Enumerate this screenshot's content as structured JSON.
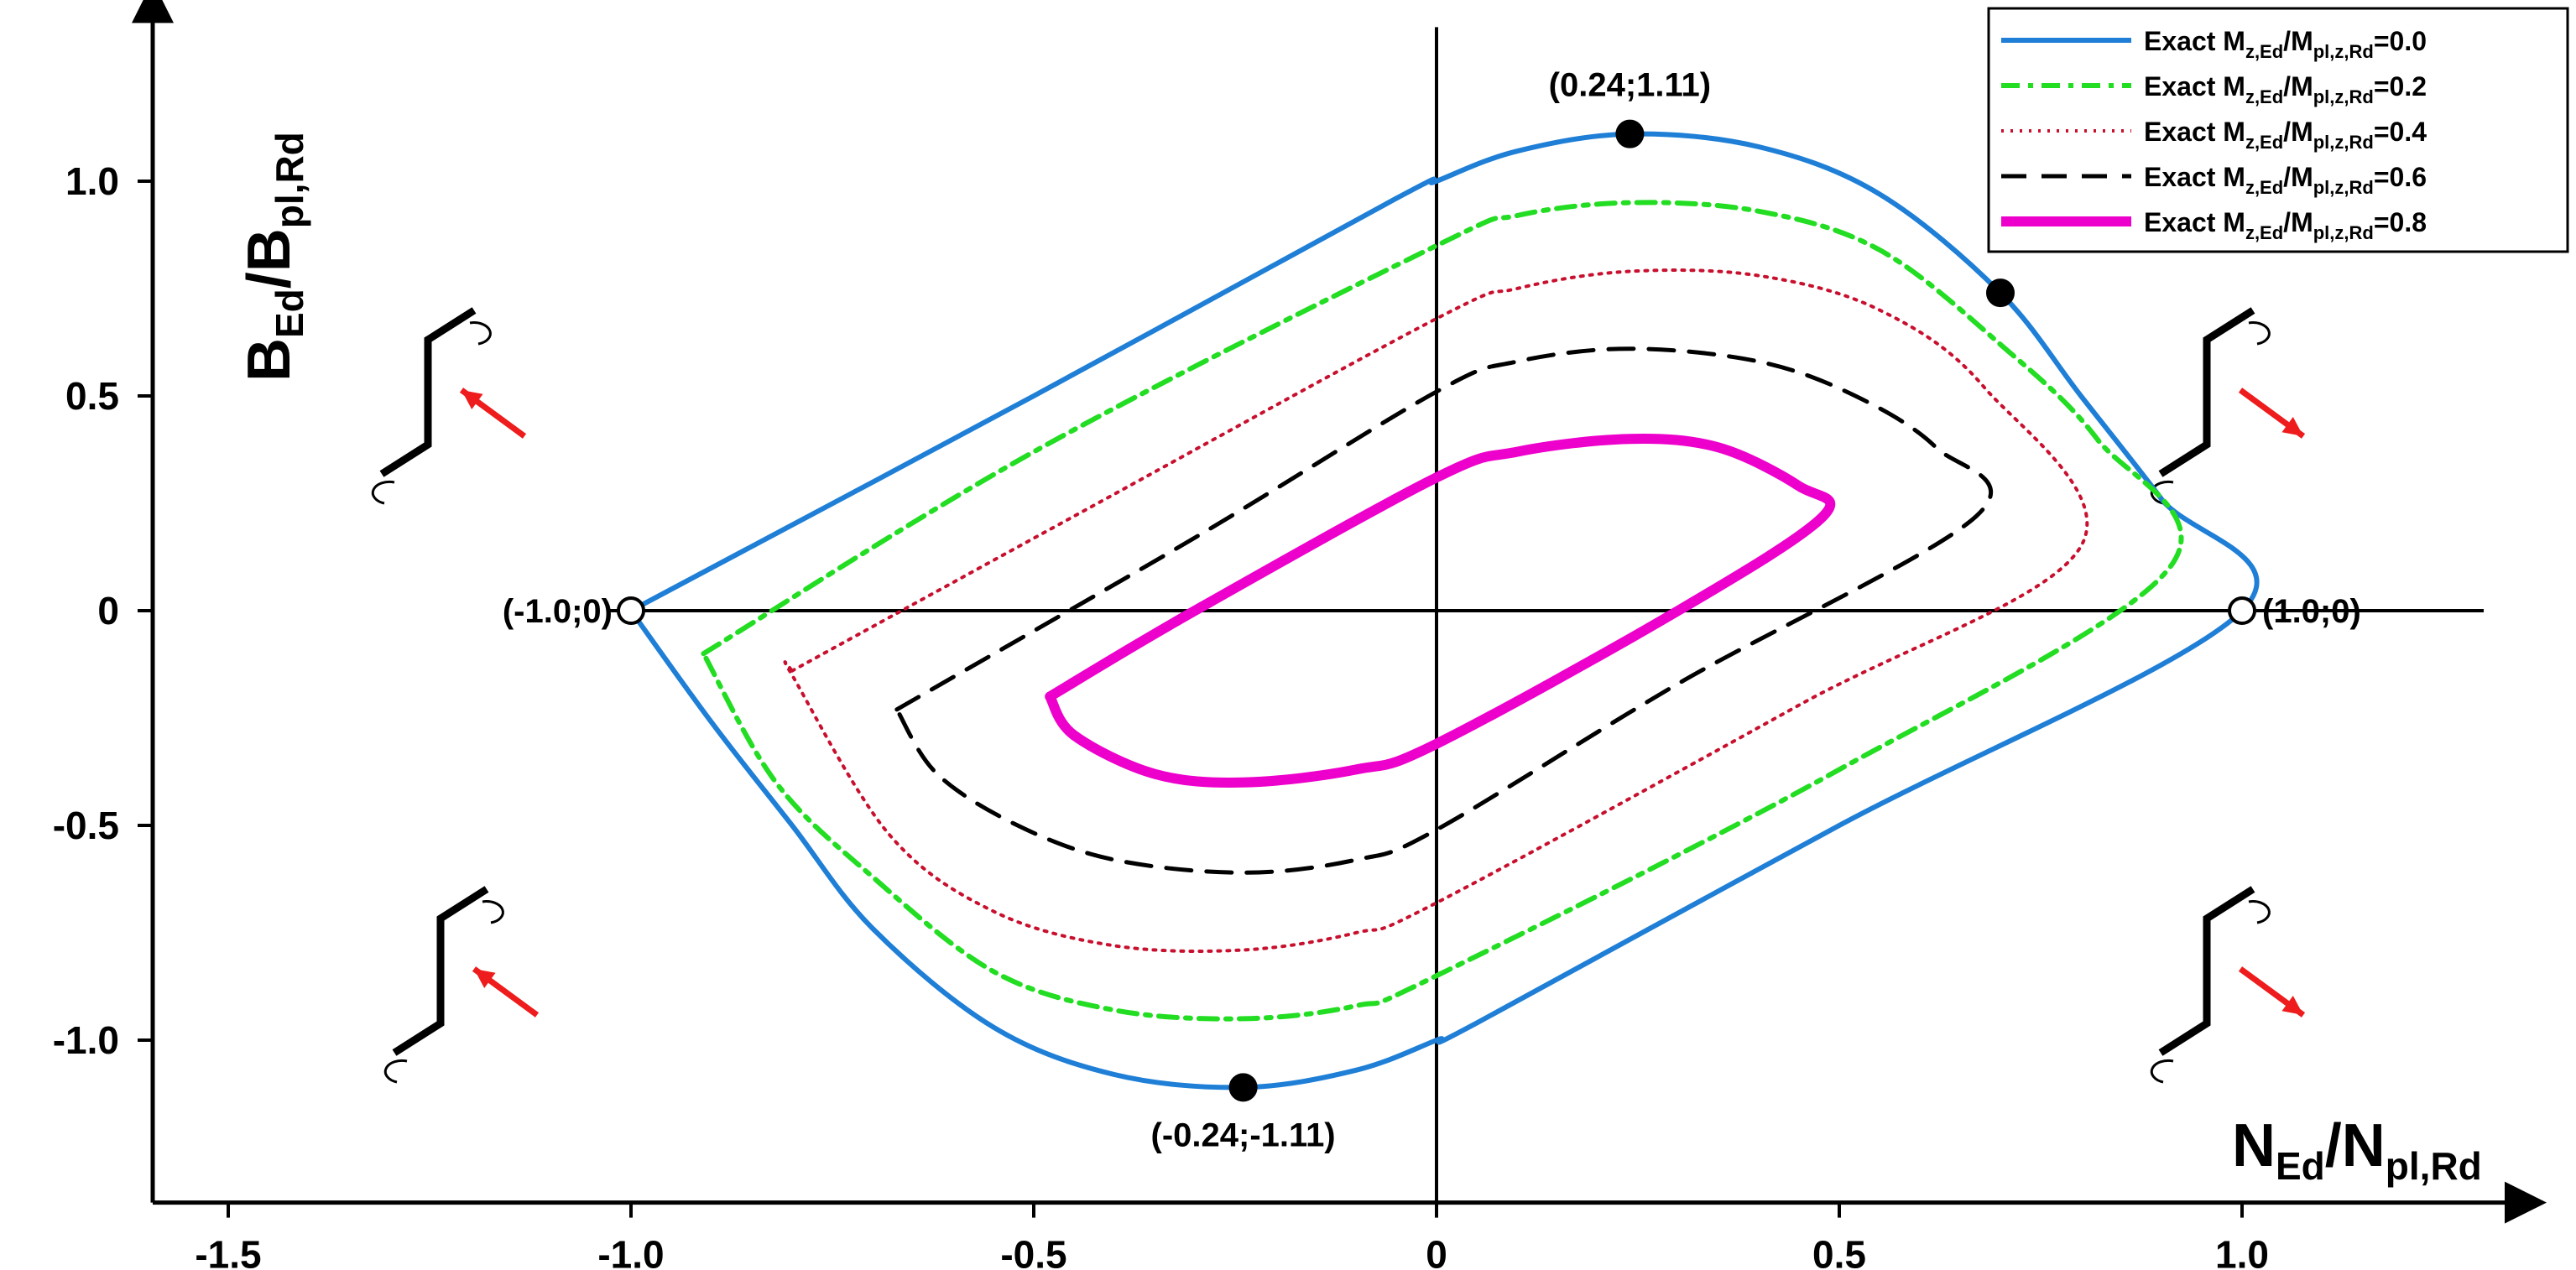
{
  "chart_data": {
    "type": "line",
    "title": "",
    "xlabel": {
      "main": "N",
      "sub1": "Ed",
      "slash": "/N",
      "sub2": "pl,Rd"
    },
    "ylabel": {
      "main": "B",
      "sub1": "Ed",
      "slash": "/B",
      "sub2": "pl,Rd"
    },
    "xlim": [
      -1.6,
      1.3
    ],
    "ylim": [
      -1.3,
      1.3
    ],
    "xticks": [
      {
        "value": -1.5,
        "label": "-1.5"
      },
      {
        "value": -1.0,
        "label": "-1.0"
      },
      {
        "value": -0.5,
        "label": "-0.5"
      },
      {
        "value": 0,
        "label": "0"
      },
      {
        "value": 0.5,
        "label": "0.5"
      },
      {
        "value": 1.0,
        "label": "1.0"
      }
    ],
    "yticks": [
      {
        "value": -1.0,
        "label": "-1.0"
      },
      {
        "value": -0.5,
        "label": "-0.5"
      },
      {
        "value": 0,
        "label": "0"
      },
      {
        "value": 0.5,
        "label": "0.5"
      },
      {
        "value": 1.0,
        "label": "1.0"
      }
    ],
    "grid": false,
    "legend_position": "top-right",
    "series": [
      {
        "legend_main": "Exact M",
        "legend_sub1": "z,Ed",
        "legend_mid": "/M",
        "legend_sub2": "pl,z,Rd",
        "legend_tail": "=0.0",
        "color": "#1f7fd6",
        "width": 6,
        "dash": "",
        "line_style": "solid",
        "points": [
          [
            -1.0,
            0
          ],
          [
            -0.5,
            0.5
          ],
          [
            -0.05,
            0.96
          ],
          [
            0,
            1.0
          ],
          [
            0.1,
            1.07
          ],
          [
            0.24,
            1.11
          ],
          [
            0.4,
            1.08
          ],
          [
            0.55,
            0.97
          ],
          [
            0.7,
            0.74
          ],
          [
            0.8,
            0.5
          ],
          [
            0.9,
            0.26
          ],
          [
            1.0,
            0
          ],
          [
            0.5,
            -0.5
          ],
          [
            0.05,
            -0.96
          ],
          [
            0,
            -1.0
          ],
          [
            -0.1,
            -1.07
          ],
          [
            -0.24,
            -1.11
          ],
          [
            -0.4,
            -1.08
          ],
          [
            -0.55,
            -0.97
          ],
          [
            -0.7,
            -0.74
          ],
          [
            -0.8,
            -0.5
          ],
          [
            -0.9,
            -0.26
          ],
          [
            -1.0,
            0
          ]
        ]
      },
      {
        "legend_main": "Exact M",
        "legend_sub1": "z,Ed",
        "legend_mid": "/M",
        "legend_sub2": "pl,z,Rd",
        "legend_tail": "=0.2",
        "color": "#22dd22",
        "width": 6,
        "dash": "22,10,6,10",
        "line_style": "dash-dot",
        "points": [
          [
            -0.91,
            -0.1
          ],
          [
            -0.5,
            0.37
          ],
          [
            0,
            0.85
          ],
          [
            0.1,
            0.92
          ],
          [
            0.24,
            0.95
          ],
          [
            0.4,
            0.93
          ],
          [
            0.55,
            0.84
          ],
          [
            0.7,
            0.62
          ],
          [
            0.82,
            0.4
          ],
          [
            0.91,
            0.1
          ],
          [
            0.5,
            -0.37
          ],
          [
            0,
            -0.85
          ],
          [
            -0.1,
            -0.92
          ],
          [
            -0.24,
            -0.95
          ],
          [
            -0.4,
            -0.93
          ],
          [
            -0.55,
            -0.84
          ],
          [
            -0.7,
            -0.62
          ],
          [
            -0.82,
            -0.4
          ],
          [
            -0.91,
            -0.1
          ]
        ]
      },
      {
        "legend_main": "Exact M",
        "legend_sub1": "z,Ed",
        "legend_mid": "/M",
        "legend_sub2": "pl,z,Rd",
        "legend_tail": "=0.4",
        "color": "#c8102e",
        "width": 4,
        "dash": "3,8",
        "line_style": "dotted",
        "points": [
          [
            -0.8,
            -0.14
          ],
          [
            -0.45,
            0.22
          ],
          [
            0,
            0.68
          ],
          [
            0.1,
            0.75
          ],
          [
            0.24,
            0.79
          ],
          [
            0.4,
            0.78
          ],
          [
            0.55,
            0.7
          ],
          [
            0.68,
            0.52
          ],
          [
            0.8,
            0.15
          ],
          [
            0.45,
            -0.22
          ],
          [
            0,
            -0.68
          ],
          [
            -0.1,
            -0.75
          ],
          [
            -0.24,
            -0.79
          ],
          [
            -0.4,
            -0.78
          ],
          [
            -0.55,
            -0.7
          ],
          [
            -0.68,
            -0.52
          ],
          [
            -0.8,
            -0.15
          ],
          [
            -0.8,
            -0.14
          ]
        ]
      },
      {
        "legend_main": "Exact M",
        "legend_sub1": "z,Ed",
        "legend_mid": "/M",
        "legend_sub2": "pl,z,Rd",
        "legend_tail": "=0.6",
        "color": "#000000",
        "width": 5,
        "dash": "30,18",
        "line_style": "dashed",
        "points": [
          [
            -0.67,
            -0.23
          ],
          [
            -0.3,
            0.17
          ],
          [
            0,
            0.51
          ],
          [
            0.1,
            0.58
          ],
          [
            0.24,
            0.61
          ],
          [
            0.4,
            0.58
          ],
          [
            0.52,
            0.5
          ],
          [
            0.62,
            0.38
          ],
          [
            0.67,
            0.22
          ],
          [
            0.3,
            -0.17
          ],
          [
            0,
            -0.51
          ],
          [
            -0.1,
            -0.58
          ],
          [
            -0.24,
            -0.61
          ],
          [
            -0.4,
            -0.58
          ],
          [
            -0.52,
            -0.5
          ],
          [
            -0.62,
            -0.38
          ],
          [
            -0.67,
            -0.23
          ]
        ]
      },
      {
        "legend_main": "Exact M",
        "legend_sub1": "z,Ed",
        "legend_mid": "/M",
        "legend_sub2": "pl,z,Rd",
        "legend_tail": "=0.8",
        "color": "#ee00cc",
        "width": 12,
        "dash": "",
        "line_style": "solid",
        "points": [
          [
            -0.48,
            -0.2
          ],
          [
            -0.3,
            0.0
          ],
          [
            0,
            0.31
          ],
          [
            0.1,
            0.37
          ],
          [
            0.24,
            0.4
          ],
          [
            0.35,
            0.38
          ],
          [
            0.45,
            0.29
          ],
          [
            0.48,
            0.22
          ],
          [
            0.3,
            0.0
          ],
          [
            0,
            -0.31
          ],
          [
            -0.1,
            -0.37
          ],
          [
            -0.24,
            -0.4
          ],
          [
            -0.35,
            -0.38
          ],
          [
            -0.45,
            -0.29
          ],
          [
            -0.48,
            -0.2
          ]
        ]
      }
    ],
    "markers": [
      {
        "x": 0.24,
        "y": 1.11,
        "label": "(0.24;1.11)",
        "filled": true
      },
      {
        "x": -0.24,
        "y": -1.11,
        "label": "(-0.24;-1.11)",
        "filled": true
      },
      {
        "x": -1.0,
        "y": 0,
        "label": "(-1.0;0)",
        "filled": false
      },
      {
        "x": 1.0,
        "y": 0,
        "label": "(1.0;0)",
        "filled": false
      },
      {
        "x": 0.7,
        "y": 0.74,
        "label": "",
        "filled": true
      }
    ],
    "quadrant_icons": [
      {
        "name": "quadrant-icon-upper-left",
        "arrow_dir": "up-left"
      },
      {
        "name": "quadrant-icon-upper-right",
        "arrow_dir": "down-right"
      },
      {
        "name": "quadrant-icon-lower-left",
        "arrow_dir": "up-left"
      },
      {
        "name": "quadrant-icon-lower-right",
        "arrow_dir": "down-right"
      }
    ],
    "icon_arrow_color": "#ee1c1c"
  }
}
